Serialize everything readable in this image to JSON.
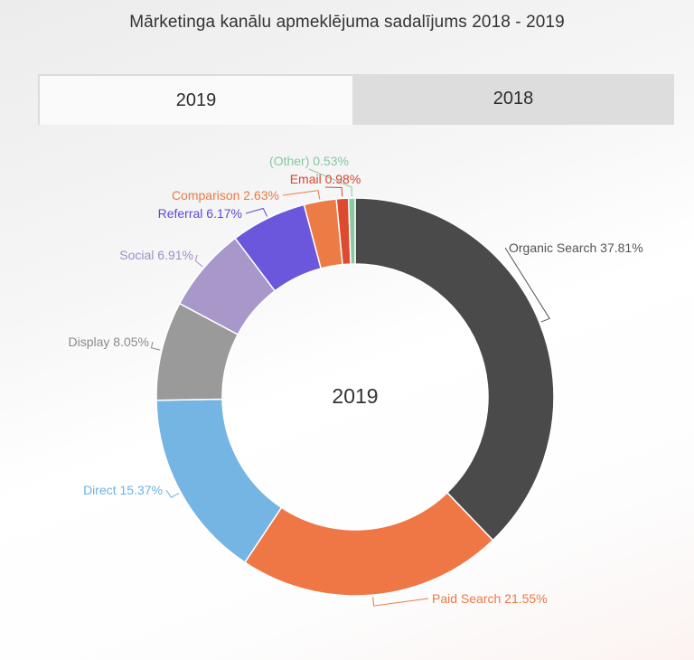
{
  "title": "Mārketinga kanālu apmeklējuma sadalījums 2018 - 2019",
  "tabs": [
    {
      "label": "2019",
      "active": true
    },
    {
      "label": "2018",
      "active": false
    }
  ],
  "chart_data": {
    "type": "pie",
    "center_label": "2019",
    "categories": [
      "Organic Search",
      "Paid Search",
      "Direct",
      "Display",
      "Social",
      "Referral",
      "Comparison",
      "Email",
      "(Other)"
    ],
    "values": [
      37.81,
      21.55,
      15.37,
      8.05,
      6.91,
      6.17,
      2.63,
      0.98,
      0.53
    ],
    "labels": [
      "Organic Search 37.81%",
      "Paid Search 21.55%",
      "Direct 15.37%",
      "Display 8.05%",
      "Social 6.91%",
      "Referral 6.17%",
      "Comparison 2.63%",
      "Email 0.98%",
      "(Other) 0.53%"
    ],
    "colors": [
      "#4a4a4a",
      "#ee7745",
      "#74b5e4",
      "#9a9a9a",
      "#a897c9",
      "#6a57db",
      "#ec7b45",
      "#dc4a2f",
      "#88c9a1"
    ],
    "label_colors": [
      "#555555",
      "#ee7745",
      "#6db1e2",
      "#8a8a8a",
      "#a08ec8",
      "#5e4ad4",
      "#ea7a44",
      "#d9472b",
      "#86c79f"
    ]
  }
}
